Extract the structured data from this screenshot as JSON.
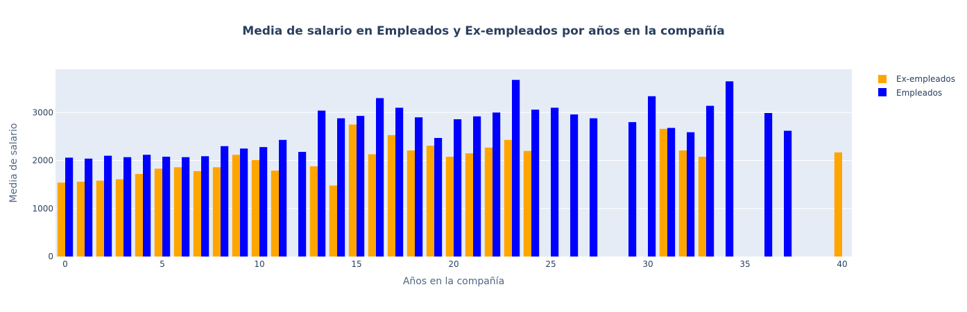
{
  "chart_data": {
    "type": "bar",
    "title": "Media de salario en Empleados y Ex-empleados por años en la compañía",
    "xlabel": "Años en la compañía",
    "ylabel": "Media de salario",
    "xlim": [
      -0.5,
      40.5
    ],
    "ylim": [
      0,
      3900
    ],
    "xticks": [
      0,
      5,
      10,
      15,
      20,
      25,
      30,
      35,
      40
    ],
    "yticks": [
      0,
      1000,
      2000,
      3000
    ],
    "grid": true,
    "legend_position": "top-right",
    "plot_bg": "#e5ecf6",
    "series": [
      {
        "name": "Ex-empleados",
        "color": "#FFA500",
        "x": [
          0,
          1,
          2,
          3,
          4,
          5,
          6,
          7,
          8,
          9,
          10,
          11,
          13,
          14,
          15,
          16,
          17,
          18,
          19,
          20,
          21,
          22,
          23,
          24,
          31,
          32,
          33,
          40
        ],
        "values": [
          1540,
          1560,
          1580,
          1610,
          1720,
          1830,
          1860,
          1780,
          1860,
          2120,
          2010,
          1790,
          1880,
          1480,
          2750,
          2130,
          2530,
          2210,
          2310,
          2080,
          2150,
          2270,
          2430,
          2200,
          2660,
          2210,
          2080,
          2170
        ]
      },
      {
        "name": "Empleados",
        "color": "#0000FF",
        "x": [
          0,
          1,
          2,
          3,
          4,
          5,
          6,
          7,
          8,
          9,
          10,
          11,
          12,
          13,
          14,
          15,
          16,
          17,
          18,
          19,
          20,
          21,
          22,
          23,
          24,
          25,
          26,
          27,
          29,
          30,
          31,
          32,
          33,
          34,
          36,
          37
        ],
        "values": [
          2060,
          2040,
          2100,
          2070,
          2120,
          2080,
          2070,
          2090,
          2300,
          2250,
          2280,
          2430,
          2180,
          3040,
          2880,
          2930,
          3300,
          3100,
          2900,
          2470,
          2860,
          2920,
          3000,
          3680,
          3060,
          3100,
          2960,
          2880,
          2800,
          3340,
          2680,
          2590,
          3140,
          3650,
          2990,
          2620
        ]
      }
    ]
  }
}
